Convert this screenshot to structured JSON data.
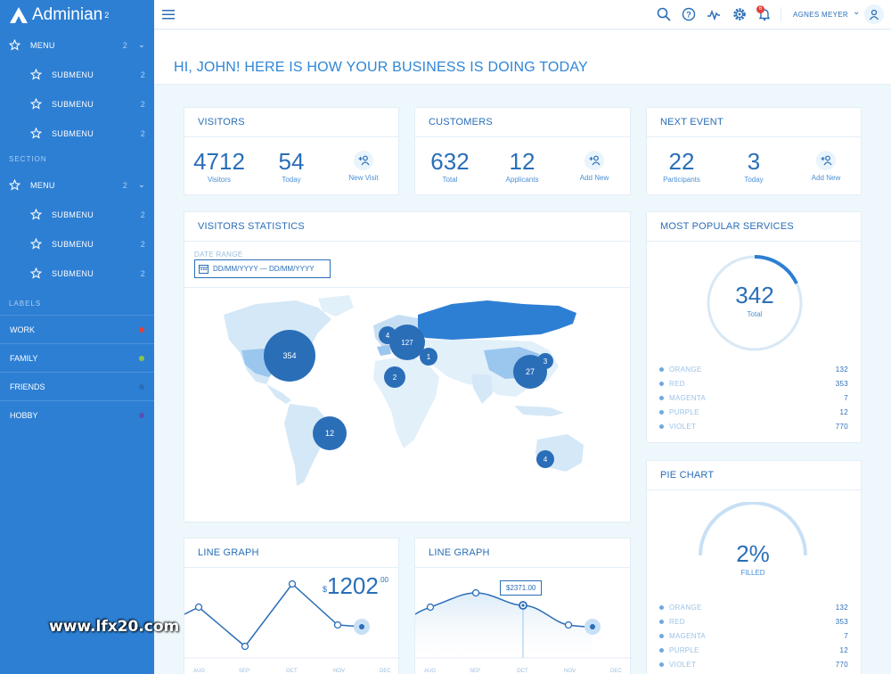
{
  "app": {
    "name": "Adminian",
    "version_sup": "2"
  },
  "sidebar": {
    "group1": {
      "menu": {
        "label": "MENU",
        "count": "2"
      },
      "submenus": [
        {
          "label": "SUBMENU",
          "count": "2"
        },
        {
          "label": "SUBMENU",
          "count": "2"
        },
        {
          "label": "SUBMENU",
          "count": "2"
        }
      ]
    },
    "section_title": "SECTION",
    "group2": {
      "menu": {
        "label": "MENU",
        "count": "2"
      },
      "submenus": [
        {
          "label": "SUBMENU",
          "count": "2"
        },
        {
          "label": "SUBMENU",
          "count": "2"
        },
        {
          "label": "SUBMENU",
          "count": "2"
        }
      ]
    },
    "labels_title": "LABELS",
    "labels": [
      {
        "label": "WORK",
        "color": "#e0403a"
      },
      {
        "label": "FAMILY",
        "color": "#8bc34a"
      },
      {
        "label": "FRIENDS",
        "color": "#2a6eb8"
      },
      {
        "label": "HOBBY",
        "color": "#5a4fb8"
      }
    ]
  },
  "topbar": {
    "icons": [
      "search-icon",
      "help-icon",
      "activity-icon",
      "settings-icon",
      "notifications-icon"
    ],
    "notification_count": "6",
    "user_name": "AGNES MEYER"
  },
  "greeting": "HI, JOHN! HERE IS HOW YOUR BUSINESS IS DOING TODAY",
  "visitors": {
    "title": "VISITORS",
    "total": "4712",
    "total_label": "Visitors",
    "today": "54",
    "today_label": "Today",
    "action": "New Visit"
  },
  "customers": {
    "title": "CUSTOMERS",
    "total": "632",
    "total_label": "Total",
    "applicants": "12",
    "applicants_label": "Applicants",
    "action": "Add New"
  },
  "next_event": {
    "title": "NEXT EVENT",
    "participants": "22",
    "participants_label": "Participants",
    "today": "3",
    "today_label": "Today",
    "action": "Add New"
  },
  "visitors_stats": {
    "title": "VISITORS STATISTICS",
    "date_range_label": "DATE RANGE",
    "date_range_value": "DD/MM/YYYY — DD/MM/YYYY",
    "map_markers": [
      "354",
      "4",
      "127",
      "1",
      "2",
      "27",
      "3",
      "12",
      "4"
    ]
  },
  "popular_services": {
    "title": "MOST POPULAR SERVICES",
    "total": "342",
    "total_label": "Total",
    "items": [
      {
        "label": "ORANGE",
        "value": "132"
      },
      {
        "label": "RED",
        "value": "353"
      },
      {
        "label": "MAGENTA",
        "value": "7"
      },
      {
        "label": "PURPLE",
        "value": "12"
      },
      {
        "label": "VIOLET",
        "value": "770"
      }
    ]
  },
  "pie_chart": {
    "title": "PIE CHART",
    "value": "2%",
    "value_label": "FILLED",
    "items": [
      {
        "label": "ORANGE",
        "value": "132"
      },
      {
        "label": "RED",
        "value": "353"
      },
      {
        "label": "MAGENTA",
        "value": "7"
      },
      {
        "label": "PURPLE",
        "value": "12"
      },
      {
        "label": "VIOLET",
        "value": "770"
      }
    ]
  },
  "line_graph_1": {
    "title": "LINE GRAPH",
    "currency": "$",
    "amount": "1202",
    "cents": ".00",
    "months": [
      "AUG",
      "SEP",
      "OCT",
      "NOV",
      "DEC"
    ]
  },
  "line_graph_2": {
    "title": "LINE GRAPH",
    "tooltip": "$2371.00",
    "months": [
      "AUG",
      "SEP",
      "OCT",
      "NOV",
      "DEC"
    ]
  },
  "watermark": "www.lfx20.com"
}
